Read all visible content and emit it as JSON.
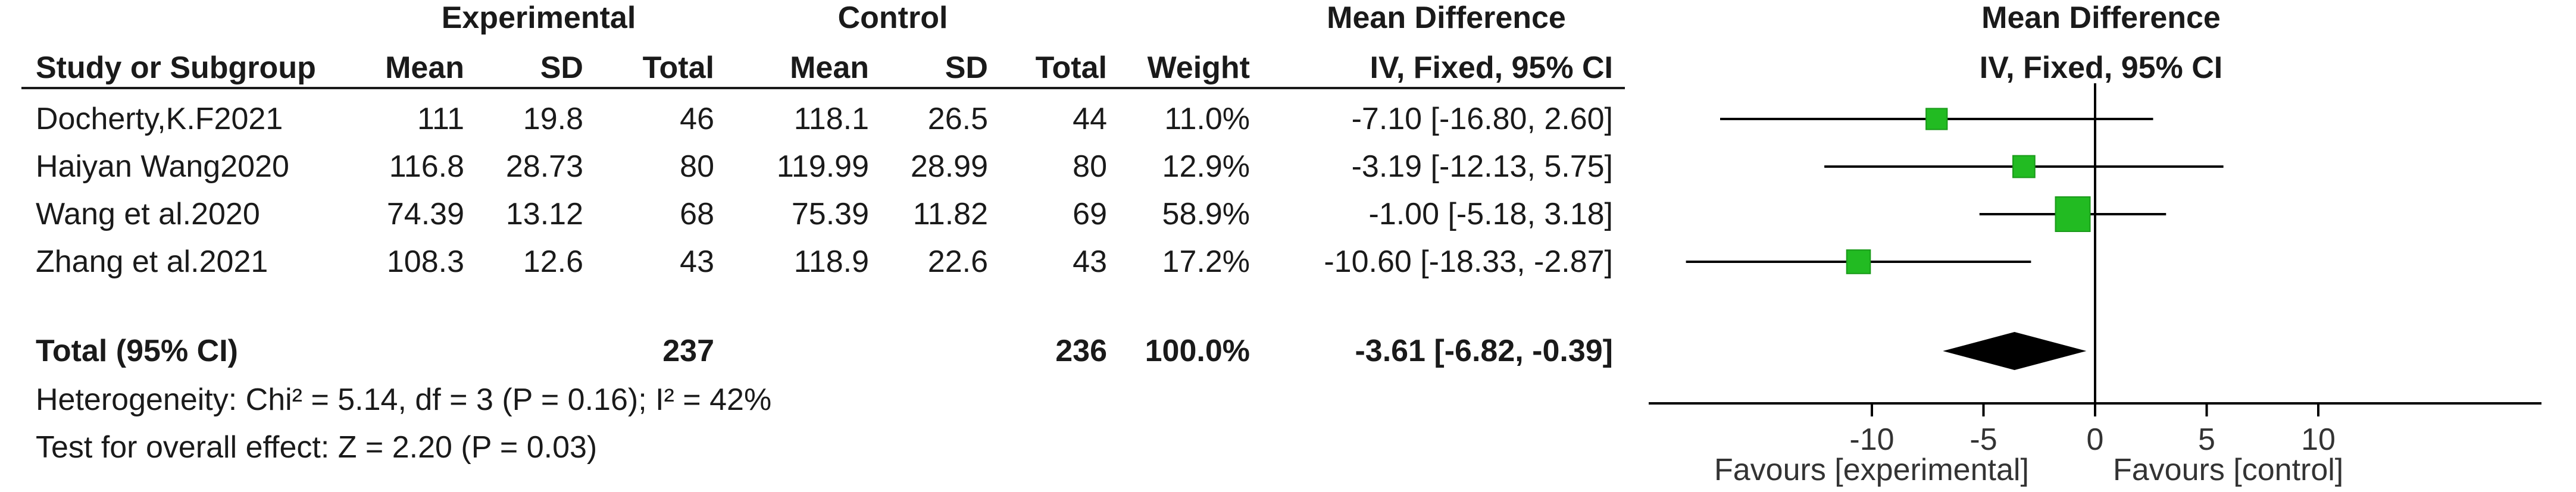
{
  "table": {
    "group_headers": {
      "experimental": "Experimental",
      "control": "Control",
      "mean_difference": "Mean Difference"
    },
    "columns": {
      "study": "Study or Subgroup",
      "exp_mean": "Mean",
      "exp_sd": "SD",
      "exp_total": "Total",
      "ctl_mean": "Mean",
      "ctl_sd": "SD",
      "ctl_total": "Total",
      "weight": "Weight",
      "md": "IV, Fixed, 95% CI"
    },
    "rows": [
      {
        "study": "Docherty,K.F2021",
        "exp_mean": "111",
        "exp_sd": "19.8",
        "exp_total": "46",
        "ctl_mean": "118.1",
        "ctl_sd": "26.5",
        "ctl_total": "44",
        "weight": "11.0%",
        "ci": "-7.10 [-16.80, 2.60]"
      },
      {
        "study": "Haiyan Wang2020",
        "exp_mean": "116.8",
        "exp_sd": "28.73",
        "exp_total": "80",
        "ctl_mean": "119.99",
        "ctl_sd": "28.99",
        "ctl_total": "80",
        "weight": "12.9%",
        "ci": "-3.19 [-12.13, 5.75]"
      },
      {
        "study": "Wang et al.2020",
        "exp_mean": "74.39",
        "exp_sd": "13.12",
        "exp_total": "68",
        "ctl_mean": "75.39",
        "ctl_sd": "11.82",
        "ctl_total": "69",
        "weight": "58.9%",
        "ci": "-1.00 [-5.18, 3.18]"
      },
      {
        "study": "Zhang et al.2021",
        "exp_mean": "108.3",
        "exp_sd": "12.6",
        "exp_total": "43",
        "ctl_mean": "118.9",
        "ctl_sd": "22.6",
        "ctl_total": "43",
        "weight": "17.2%",
        "ci": "-10.60 [-18.33, -2.87]"
      }
    ],
    "total": {
      "label": "Total (95% CI)",
      "exp_total": "237",
      "ctl_total": "236",
      "weight": "100.0%",
      "ci": "-3.61 [-6.82, -0.39]"
    },
    "heterogeneity": "Heterogeneity: Chi² = 5.14, df = 3 (P = 0.16); I² = 42%",
    "overall_effect": "Test for overall effect: Z = 2.20 (P = 0.03)"
  },
  "plot_header": {
    "title": "Mean Difference",
    "subtitle": "IV, Fixed, 95% CI"
  },
  "chart_data": {
    "type": "scatter",
    "studies": [
      {
        "name": "Docherty,K.F2021",
        "md": -7.1,
        "ci_low": -16.8,
        "ci_high": 2.6,
        "weight": 11.0
      },
      {
        "name": "Haiyan Wang2020",
        "md": -3.19,
        "ci_low": -12.13,
        "ci_high": 5.75,
        "weight": 12.9
      },
      {
        "name": "Wang et al.2020",
        "md": -1.0,
        "ci_low": -5.18,
        "ci_high": 3.18,
        "weight": 58.9
      },
      {
        "name": "Zhang et al.2021",
        "md": -10.6,
        "ci_low": -18.33,
        "ci_high": -2.87,
        "weight": 17.2
      }
    ],
    "pooled": {
      "md": -3.61,
      "ci_low": -6.82,
      "ci_high": -0.39
    },
    "x_ticks": [
      -10,
      -5,
      0,
      5,
      10
    ],
    "xlim": [
      -20,
      20
    ],
    "xlabel_left": "Favours [experimental]",
    "xlabel_right": "Favours [control]",
    "colors": {
      "marker": "#22bb22",
      "marker_edge": "#1a9a1a",
      "diamond": "#000000",
      "line": "#000000"
    }
  }
}
